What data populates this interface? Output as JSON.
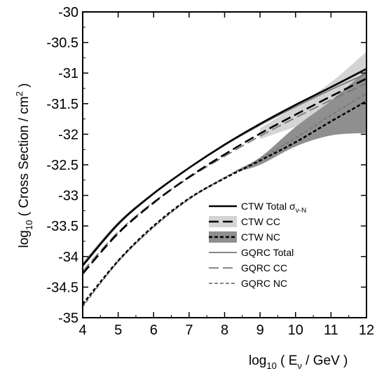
{
  "chart_data": {
    "type": "line",
    "xlabel": {
      "prefix": "log",
      "prefix_sub": "10",
      "main": " ( E",
      "main_sub": "ν",
      "suffix": " / GeV )"
    },
    "ylabel": {
      "prefix": "log",
      "prefix_sub": "10",
      "main": " ( Cross Section / cm",
      "main_sup": "2",
      "suffix": " )"
    },
    "xlim": [
      4,
      12
    ],
    "ylim": [
      -35,
      -30
    ],
    "xticks": [
      4,
      5,
      6,
      7,
      8,
      9,
      10,
      11,
      12
    ],
    "xtick_labels": [
      "4",
      "5",
      "6",
      "7",
      "8",
      "9",
      "10",
      "11",
      "12"
    ],
    "yticks": [
      -35,
      -34.5,
      -34,
      -33.5,
      -33,
      -32.5,
      -32,
      -31.5,
      -31,
      -30.5,
      -30
    ],
    "ytick_labels": [
      "-35",
      "-34.5",
      "-34",
      "-33.5",
      "-33",
      "-32.5",
      "-32",
      "-31.5",
      "-31",
      "-30.5",
      "-30"
    ],
    "x": [
      4,
      5,
      6,
      7,
      8,
      9,
      10,
      11,
      12
    ],
    "series": [
      {
        "name": "CTW Total σν-N",
        "legend_main": "CTW Total σ",
        "legend_sub": "ν-N",
        "style": "solid-thick",
        "color": "#000000",
        "values": [
          -34.15,
          -33.47,
          -32.97,
          -32.55,
          -32.17,
          -31.83,
          -31.52,
          -31.23,
          -30.93
        ]
      },
      {
        "name": "CTW CC",
        "style": "longdash-thick",
        "color": "#000000",
        "values": [
          -34.28,
          -33.62,
          -33.12,
          -32.7,
          -32.33,
          -31.99,
          -31.68,
          -31.38,
          -31.09
        ]
      },
      {
        "name": "CTW NC",
        "style": "shortdash-thick",
        "color": "#000000",
        "values": [
          -34.78,
          -34.07,
          -33.5,
          -33.05,
          -32.72,
          -32.43,
          -32.13,
          -31.79,
          -31.46
        ]
      },
      {
        "name": "GQRC Total",
        "style": "solid",
        "color": "#777777",
        "values": [
          -34.12,
          -33.45,
          -32.96,
          -32.55,
          -32.18,
          -31.85,
          -31.55,
          -31.27,
          -31.01
        ]
      },
      {
        "name": "GQRC CC",
        "style": "longdash",
        "color": "#777777",
        "values": [
          -34.24,
          -33.6,
          -33.11,
          -32.71,
          -32.36,
          -32.03,
          -31.73,
          -31.44,
          -31.17
        ]
      },
      {
        "name": "GQRC NC",
        "style": "shortdash",
        "color": "#777777",
        "values": [
          -34.82,
          -34.08,
          -33.52,
          -33.06,
          -32.71,
          -32.4,
          -32.06,
          -31.69,
          -31.33
        ]
      }
    ],
    "bands": [
      {
        "name": "CTW CC band",
        "color": "#d4d4d4",
        "x": [
          9,
          10,
          11,
          12
        ],
        "upper": [
          -31.9,
          -31.55,
          -31.15,
          -30.65
        ],
        "lower": [
          -32.08,
          -31.88,
          -31.72,
          -31.63
        ]
      },
      {
        "name": "CTW NC band",
        "color": "#8f8f8f",
        "x": [
          8.3,
          9,
          10,
          11,
          12
        ],
        "upper": [
          -32.6,
          -32.38,
          -31.88,
          -31.45,
          -30.95
        ],
        "lower": [
          -32.62,
          -32.5,
          -32.2,
          -32.02,
          -31.98
        ]
      }
    ],
    "legend": {
      "position": "lower-right"
    }
  }
}
